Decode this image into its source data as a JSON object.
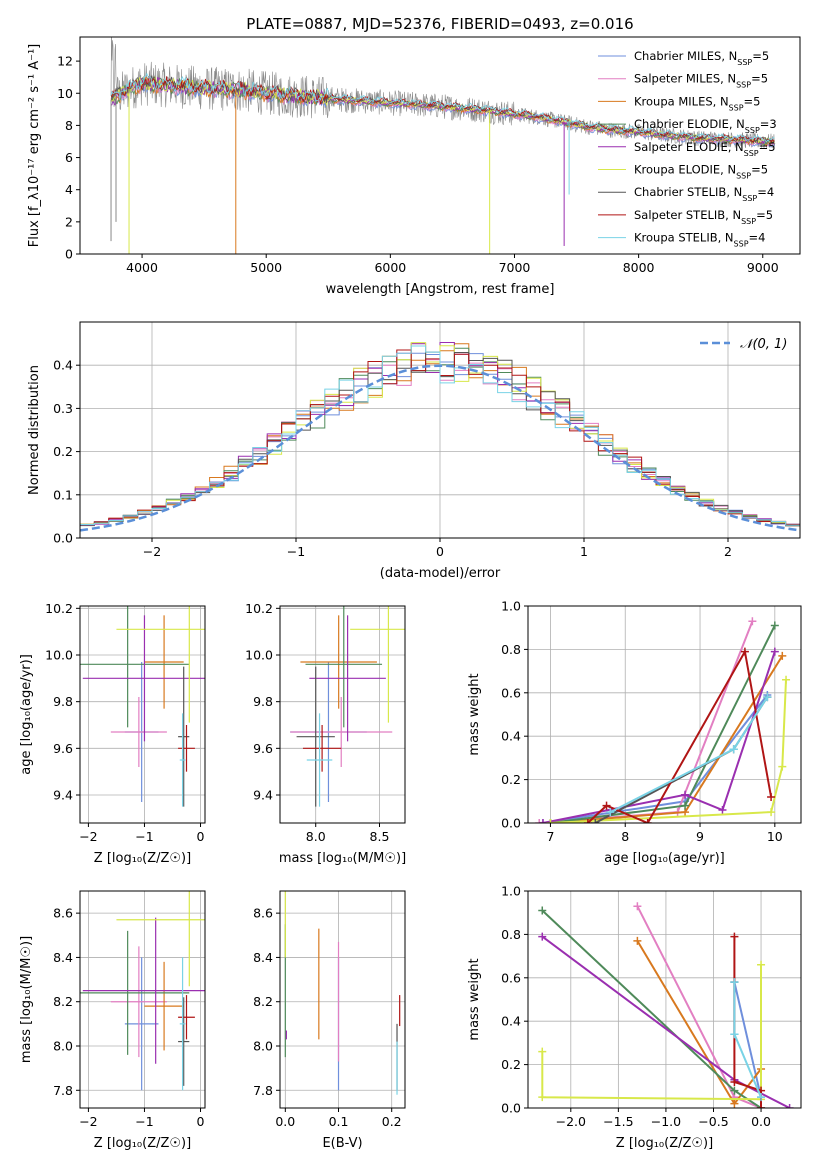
{
  "figure_title": "PLATE=0887, MJD=52376, FIBERID=0493, z=0.016",
  "colors": {
    "Chabrier MILES": "#6f8fdc",
    "Salpeter MILES": "#e27fc2",
    "Kroupa MILES": "#d8791f",
    "Chabrier ELODIE": "#4f8a5a",
    "Salpeter ELODIE": "#9a2fb0",
    "Kroupa ELODIE": "#d8e84a",
    "Chabrier STELIB": "#555555",
    "Salpeter STELIB": "#b01515",
    "Kroupa STELIB": "#79d3e6",
    "data": "#888888",
    "grid": "#b0b0b0",
    "gaussian": "#5b8fd8"
  },
  "chart_data": [
    {
      "id": "spectrum",
      "type": "line",
      "title": "PLATE=0887, MJD=52376, FIBERID=0493, z=0.016",
      "xlabel": "wavelength [Angstrom, rest frame]",
      "ylabel": "Flux [f_λ10⁻¹⁷ erg cm⁻² s⁻¹ A⁻¹]",
      "xlim": [
        3500,
        9300
      ],
      "ylim": [
        0,
        13.5
      ],
      "xticks": [
        4000,
        5000,
        6000,
        7000,
        8000,
        9000
      ],
      "yticks": [
        0,
        2,
        4,
        6,
        8,
        10,
        12
      ],
      "grid": false,
      "legend": "top-right",
      "legend_entries": [
        {
          "model": "Chabrier MILES",
          "n": "5"
        },
        {
          "model": "Salpeter MILES",
          "n": "5"
        },
        {
          "model": "Kroupa MILES",
          "n": "5"
        },
        {
          "model": "Chabrier ELODIE",
          "n": "3"
        },
        {
          "model": "Salpeter ELODIE",
          "n": "5"
        },
        {
          "model": "Kroupa ELODIE",
          "n": "5"
        },
        {
          "model": "Chabrier STELIB",
          "n": "4"
        },
        {
          "model": "Salpeter STELIB",
          "n": "5"
        },
        {
          "model": "Kroupa STELIB",
          "n": "4"
        }
      ],
      "continuum": {
        "x": [
          3750,
          3900,
          4000,
          4200,
          4500,
          4800,
          5000,
          5300,
          5600,
          6000,
          6400,
          6800,
          7000,
          7200,
          7400,
          7600,
          7800,
          8000,
          8200,
          8500,
          8800,
          9000,
          9100
        ],
        "y": [
          9.6,
          10.3,
          10.6,
          10.5,
          10.3,
          10.2,
          10.0,
          9.8,
          9.6,
          9.4,
          9.2,
          8.9,
          8.7,
          8.5,
          8.2,
          7.9,
          7.7,
          7.6,
          7.4,
          7.2,
          7.1,
          7.0,
          7.0
        ]
      },
      "drop_lines": [
        {
          "x": 3895,
          "ymin": 0,
          "series": "Kroupa ELODIE"
        },
        {
          "x": 4755,
          "ymin": 0,
          "series": "Kroupa MILES"
        },
        {
          "x": 6800,
          "ymin": 0,
          "series": "Kroupa ELODIE"
        },
        {
          "x": 7400,
          "ymin": 0.5,
          "series": "Salpeter ELODIE"
        },
        {
          "x": 7440,
          "ymin": 3.7,
          "series": "Kroupa STELIB"
        },
        {
          "x": 3750,
          "ymin": 0.8,
          "series": "data"
        },
        {
          "x": 3790,
          "ymin": 2.0,
          "series": "data"
        }
      ]
    },
    {
      "id": "residuals",
      "type": "area",
      "xlabel": "(data-model)/error",
      "ylabel": "Normed distribution",
      "xlim": [
        -2.5,
        2.5
      ],
      "ylim": [
        0,
        0.5
      ],
      "xticks": [
        -2,
        -1,
        0,
        1,
        2
      ],
      "yticks": [
        0.0,
        0.1,
        0.2,
        0.3,
        0.4
      ],
      "grid": true,
      "legend": "top-right",
      "legend_label": "𝒩(0, 1)",
      "bin_width": 0.1,
      "gaussian": {
        "mean": 0,
        "sigma": 1
      }
    },
    {
      "id": "z-age",
      "type": "scatter",
      "xlabel": "Z [log₁₀(Z/Z☉)]",
      "ylabel": "age  [log₁₀(age/yr)]",
      "xlim": [
        -2.15,
        0.08
      ],
      "ylim": [
        9.28,
        10.21
      ],
      "xticks": [
        -2,
        -1,
        0
      ],
      "yticks": [
        9.4,
        9.6,
        9.8,
        10.0,
        10.2
      ],
      "grid": true,
      "points": [
        {
          "series": "Chabrier MILES",
          "x": -1.05,
          "xerr": 0.3,
          "y": 9.67,
          "yerr": 0.3
        },
        {
          "series": "Salpeter MILES",
          "x": -1.1,
          "xerr": 0.5,
          "y": 9.67,
          "yerr": 0.15
        },
        {
          "series": "Kroupa MILES",
          "x": -0.65,
          "xerr": 0.35,
          "y": 9.97,
          "yerr": 0.2
        },
        {
          "series": "Chabrier ELODIE",
          "x": -1.3,
          "xerr": 1.1,
          "y": 9.96,
          "yerr": 0.27
        },
        {
          "series": "Salpeter ELODIE",
          "x": -1.0,
          "xerr": 1.1,
          "y": 9.9,
          "yerr": 0.27
        },
        {
          "series": "Kroupa ELODIE",
          "x": -0.2,
          "xerr": 1.3,
          "y": 10.11,
          "yerr": 0.4
        },
        {
          "series": "Chabrier STELIB",
          "x": -0.3,
          "xerr": 0.1,
          "y": 9.65,
          "yerr": 0.3
        },
        {
          "series": "Salpeter STELIB",
          "x": -0.25,
          "xerr": 0.15,
          "y": 9.6,
          "yerr": 0.1
        },
        {
          "series": "Kroupa STELIB",
          "x": -0.32,
          "xerr": 0.05,
          "y": 9.55,
          "yerr": 0.2
        }
      ]
    },
    {
      "id": "mass-age",
      "type": "scatter",
      "xlabel": "mass [log₁₀(M/M☉)]",
      "ylabel": "",
      "xlim": [
        7.72,
        8.7
      ],
      "ylim": [
        9.28,
        10.21
      ],
      "xticks": [
        8.0,
        8.5
      ],
      "yticks": [
        9.4,
        9.6,
        9.8,
        10.0,
        10.2
      ],
      "grid": true,
      "points": [
        {
          "series": "Chabrier MILES",
          "x": 8.1,
          "xerr": 0.3,
          "y": 9.67,
          "yerr": 0.3
        },
        {
          "series": "Salpeter MILES",
          "x": 8.2,
          "xerr": 0.4,
          "y": 9.67,
          "yerr": 0.15
        },
        {
          "series": "Kroupa MILES",
          "x": 8.18,
          "xerr": 0.3,
          "y": 9.97,
          "yerr": 0.2
        },
        {
          "series": "Chabrier ELODIE",
          "x": 8.22,
          "xerr": 0.3,
          "y": 9.96,
          "yerr": 0.27
        },
        {
          "series": "Salpeter ELODIE",
          "x": 8.25,
          "xerr": 0.3,
          "y": 9.9,
          "yerr": 0.27
        },
        {
          "series": "Kroupa ELODIE",
          "x": 8.57,
          "xerr": 0.3,
          "y": 10.11,
          "yerr": 0.4
        },
        {
          "series": "Chabrier STELIB",
          "x": 8.0,
          "xerr": 0.15,
          "y": 9.65,
          "yerr": 0.3
        },
        {
          "series": "Salpeter STELIB",
          "x": 8.05,
          "xerr": 0.15,
          "y": 9.6,
          "yerr": 0.1
        },
        {
          "series": "Kroupa STELIB",
          "x": 8.03,
          "xerr": 0.1,
          "y": 9.55,
          "yerr": 0.2
        }
      ]
    },
    {
      "id": "age-weight",
      "type": "line",
      "xlabel": "age  [log₁₀(age/yr)]",
      "ylabel": "mass weight",
      "xlim": [
        6.7,
        10.35
      ],
      "ylim": [
        0,
        1.0
      ],
      "xticks": [
        7,
        8,
        9,
        10
      ],
      "yticks": [
        0.0,
        0.2,
        0.4,
        0.6,
        0.8,
        1.0
      ],
      "grid": true,
      "series": [
        {
          "series": "Chabrier MILES",
          "x": [
            6.9,
            8.8,
            9.9
          ],
          "y": [
            0.0,
            0.1,
            0.59
          ]
        },
        {
          "series": "Salpeter MILES",
          "x": [
            6.85,
            8.7,
            9.7
          ],
          "y": [
            0.0,
            0.05,
            0.93
          ]
        },
        {
          "series": "Kroupa MILES",
          "x": [
            7.0,
            8.8,
            10.1
          ],
          "y": [
            0.0,
            0.05,
            0.77
          ]
        },
        {
          "series": "Chabrier ELODIE",
          "x": [
            7.0,
            8.8,
            10.0
          ],
          "y": [
            0.0,
            0.08,
            0.91
          ]
        },
        {
          "series": "Salpeter ELODIE",
          "x": [
            6.9,
            8.8,
            9.3,
            10.0
          ],
          "y": [
            0.0,
            0.13,
            0.06,
            0.79
          ]
        },
        {
          "series": "Kroupa ELODIE",
          "x": [
            7.0,
            9.95,
            10.1,
            10.15
          ],
          "y": [
            0.0,
            0.05,
            0.26,
            0.66
          ]
        },
        {
          "series": "Chabrier STELIB",
          "x": [
            7.6,
            9.45,
            9.9
          ],
          "y": [
            0.0,
            0.34,
            0.58
          ]
        },
        {
          "series": "Salpeter STELIB",
          "x": [
            7.5,
            7.75,
            8.3,
            9.6,
            9.95
          ],
          "y": [
            0.0,
            0.08,
            0.0,
            0.79,
            0.12
          ]
        },
        {
          "series": "Kroupa STELIB",
          "x": [
            7.8,
            9.45,
            9.9
          ],
          "y": [
            0.05,
            0.34,
            0.58
          ]
        }
      ]
    },
    {
      "id": "z-mass",
      "type": "scatter",
      "xlabel": "Z [log₁₀(Z/Z☉)]",
      "ylabel": "mass [log₁₀(M/M☉)]",
      "xlim": [
        -2.15,
        0.08
      ],
      "ylim": [
        7.72,
        8.7
      ],
      "xticks": [
        -2,
        -1,
        0
      ],
      "yticks": [
        7.8,
        8.0,
        8.2,
        8.4,
        8.6
      ],
      "grid": true,
      "points": [
        {
          "series": "Chabrier MILES",
          "x": -1.05,
          "xerr": 0.3,
          "y": 8.1,
          "yerr": 0.3
        },
        {
          "series": "Salpeter MILES",
          "x": -1.1,
          "xerr": 0.5,
          "y": 8.2,
          "yerr": 0.25
        },
        {
          "series": "Kroupa MILES",
          "x": -0.65,
          "xerr": 0.35,
          "y": 8.18,
          "yerr": 0.2
        },
        {
          "series": "Chabrier ELODIE",
          "x": -1.3,
          "xerr": 1.1,
          "y": 8.24,
          "yerr": 0.28
        },
        {
          "series": "Salpeter ELODIE",
          "x": -0.8,
          "xerr": 1.3,
          "y": 8.25,
          "yerr": 0.33
        },
        {
          "series": "Kroupa ELODIE",
          "x": -0.2,
          "xerr": 1.3,
          "y": 8.57,
          "yerr": 0.3
        },
        {
          "series": "Chabrier STELIB",
          "x": -0.3,
          "xerr": 0.1,
          "y": 8.02,
          "yerr": 0.2
        },
        {
          "series": "Salpeter STELIB",
          "x": -0.25,
          "xerr": 0.15,
          "y": 8.13,
          "yerr": 0.1
        },
        {
          "series": "Kroupa STELIB",
          "x": -0.32,
          "xerr": 0.05,
          "y": 8.1,
          "yerr": 0.3
        }
      ]
    },
    {
      "id": "ebv-mass",
      "type": "scatter",
      "xlabel": "E(B-V)",
      "ylabel": "",
      "xlim": [
        -0.01,
        0.225
      ],
      "ylim": [
        7.72,
        8.7
      ],
      "xticks": [
        0.0,
        0.1,
        0.2
      ],
      "yticks": [
        7.8,
        8.0,
        8.2,
        8.4,
        8.6
      ],
      "grid": true,
      "points": [
        {
          "series": "Chabrier MILES",
          "x": 0.1,
          "y": 8.1,
          "yerr": 0.3
        },
        {
          "series": "Salpeter MILES",
          "x": 0.1,
          "y": 8.2,
          "yerr": 0.27
        },
        {
          "series": "Kroupa MILES",
          "x": 0.063,
          "y": 8.28,
          "yerr": 0.25
        },
        {
          "series": "Chabrier ELODIE",
          "x": 0.0,
          "y": 8.25,
          "yerr": 0.3
        },
        {
          "series": "Salpeter ELODIE",
          "x": 0.002,
          "y": 8.05,
          "yerr": 0.02
        },
        {
          "series": "Kroupa ELODIE",
          "x": 0.0,
          "y": 8.55,
          "yerr": 0.15
        },
        {
          "series": "Chabrier STELIB",
          "x": 0.21,
          "y": 7.95,
          "yerr": 0.15
        },
        {
          "series": "Salpeter STELIB",
          "x": 0.215,
          "y": 8.16,
          "yerr": 0.07
        },
        {
          "series": "Kroupa STELIB",
          "x": 0.21,
          "y": 7.9,
          "yerr": 0.12
        }
      ]
    },
    {
      "id": "z-weight",
      "type": "line",
      "xlabel": "Z [log₁₀(Z/Z☉)]",
      "ylabel": "mass weight",
      "xlim": [
        -2.45,
        0.42
      ],
      "ylim": [
        0,
        1.0
      ],
      "xticks": [
        -2.0,
        -1.5,
        -1.0,
        -0.5,
        0.0
      ],
      "yticks": [
        0.0,
        0.2,
        0.4,
        0.6,
        0.8,
        1.0
      ],
      "grid": true,
      "series": [
        {
          "series": "Chabrier MILES",
          "x": [
            -0.28,
            0.0
          ],
          "y": [
            0.58,
            0.05
          ]
        },
        {
          "series": "Salpeter MILES",
          "x": [
            -1.3,
            -0.28,
            0.0
          ],
          "y": [
            0.93,
            0.05,
            0.0
          ]
        },
        {
          "series": "Kroupa MILES",
          "x": [
            -1.3,
            -0.28,
            0.0
          ],
          "y": [
            0.77,
            0.02,
            0.18
          ]
        },
        {
          "series": "Chabrier ELODIE",
          "x": [
            -2.3,
            -0.28,
            0.0
          ],
          "y": [
            0.91,
            0.08,
            0.0
          ]
        },
        {
          "series": "Salpeter ELODIE",
          "x": [
            -2.3,
            -0.28,
            0.3
          ],
          "y": [
            0.79,
            0.13,
            0.0
          ]
        },
        {
          "series": "Kroupa ELODIE",
          "x": [
            -2.3,
            -2.3,
            0.0,
            0.0
          ],
          "y": [
            0.26,
            0.05,
            0.04,
            0.66
          ]
        },
        {
          "series": "Chabrier STELIB",
          "x": [
            -0.28,
            -0.28
          ],
          "y": [
            0.58,
            0.34
          ]
        },
        {
          "series": "Salpeter STELIB",
          "x": [
            -0.28,
            -0.28,
            0.0,
            0.0
          ],
          "y": [
            0.79,
            0.12,
            0.08,
            0.0
          ]
        },
        {
          "series": "Kroupa STELIB",
          "x": [
            -0.28,
            -0.28,
            0.0
          ],
          "y": [
            0.58,
            0.34,
            0.05
          ]
        }
      ]
    }
  ]
}
